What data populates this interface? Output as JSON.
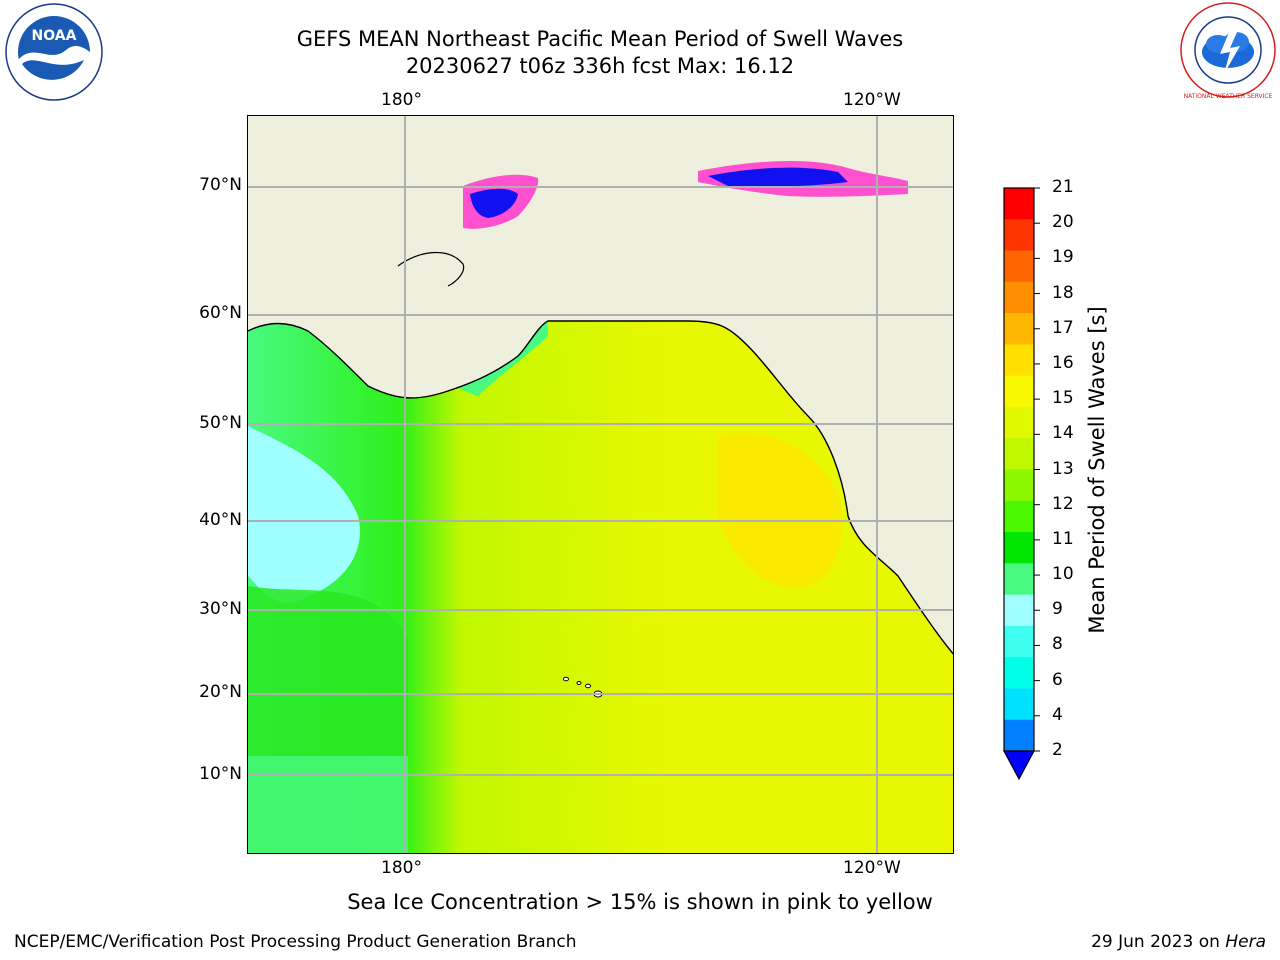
{
  "header": {
    "title_line1": "GEFS MEAN Northeast Pacific Mean Period of Swell Waves",
    "title_line2": "20230627 t06z 336h fcst   Max: 16.12"
  },
  "logos": {
    "left_text": "NOAA",
    "right_text": "NATIONAL WEATHER SERVICE"
  },
  "map": {
    "lon_labels_top": [
      "180°",
      "120°W"
    ],
    "lon_labels_bottom": [
      "180°",
      "120°W"
    ],
    "lat_labels": [
      "70°N",
      "60°N",
      "50°N",
      "40°N",
      "30°N",
      "20°N",
      "10°N"
    ]
  },
  "colorbar": {
    "title": "Mean Period of Swell Waves [s]",
    "ticks": [
      "21",
      "20",
      "19",
      "18",
      "17",
      "16",
      "15",
      "14",
      "13",
      "12",
      "11",
      "10",
      "9",
      "8",
      "6",
      "4",
      "2"
    ],
    "colors": [
      "#ff0000",
      "#ff3500",
      "#ff6500",
      "#ff8e00",
      "#ffb600",
      "#ffe000",
      "#f8f800",
      "#e0f800",
      "#c0f800",
      "#8cf800",
      "#4cf800",
      "#00e600",
      "#48fa80",
      "#a0ffff",
      "#40fff0",
      "#00ffe8",
      "#00e0ff",
      "#0080ff",
      "#0000ff"
    ]
  },
  "ice_note": "Sea Ice Concentration > 15% is shown in pink to yellow",
  "footer": {
    "left": "NCEP/EMC/Verification Post Processing Product Generation Branch",
    "right_date": "29 Jun 2023 on ",
    "right_host": "Hera"
  }
}
